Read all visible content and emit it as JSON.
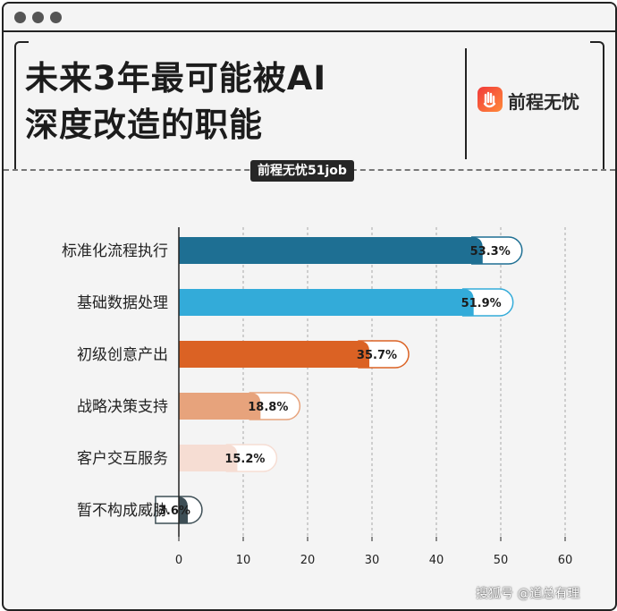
{
  "header": {
    "title": "未来3年最可能被AI\n深度改造的职能",
    "brand_name": "前程无忧",
    "source_tag": "前程无忧51job"
  },
  "watermark": "搜狐号 @道总有理",
  "colors": {
    "frame": "#222222",
    "background": "#f4f4f4"
  },
  "chart_data": {
    "type": "bar",
    "orientation": "horizontal",
    "title": "未来3年最可能被AI深度改造的职能",
    "categories": [
      "标准化流程执行",
      "基础数据处理",
      "初级创意产出",
      "战略决策支持",
      "客户交互服务",
      "暂不构成威胁"
    ],
    "values": [
      53.3,
      51.9,
      35.7,
      18.8,
      15.2,
      3.6
    ],
    "value_labels": [
      "53.3%",
      "51.9%",
      "35.7%",
      "18.8%",
      "15.2%",
      "3.6%"
    ],
    "colors": [
      "#1e6f93",
      "#33abd9",
      "#db6224",
      "#e7a37c",
      "#f6ddd3",
      "#3d4e55"
    ],
    "xlim": [
      0,
      60
    ],
    "xticks": [
      0,
      10,
      20,
      30,
      40,
      50,
      60
    ],
    "grid": true
  }
}
